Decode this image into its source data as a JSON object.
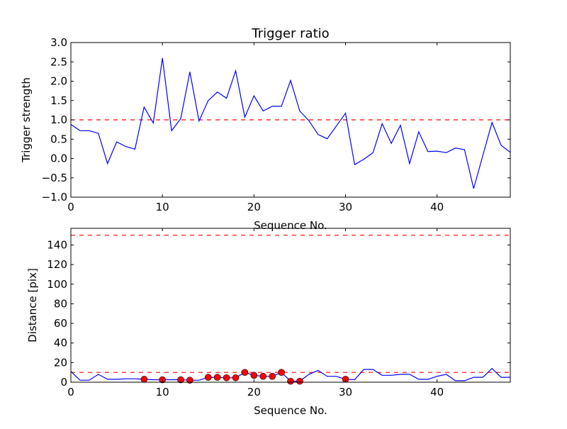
{
  "chart_data": [
    {
      "type": "line",
      "title": "Trigger ratio",
      "xlabel": "Sequence No.",
      "ylabel": "Trigger strength",
      "xlim": [
        0,
        48
      ],
      "ylim": [
        -1.0,
        3.0
      ],
      "xticks": [
        "0",
        "10",
        "20",
        "30",
        "40"
      ],
      "xtick_values": [
        0,
        10,
        20,
        30,
        40
      ],
      "yticks": [
        "−1.0",
        "−0.5",
        "0.0",
        "0.5",
        "1.0",
        "1.5",
        "2.0",
        "2.5",
        "3.0"
      ],
      "ytick_values": [
        -1.0,
        -0.5,
        0.0,
        0.5,
        1.0,
        1.5,
        2.0,
        2.5,
        3.0
      ],
      "threshold_lines": [
        1.0
      ],
      "series": [
        {
          "name": "trigger strength",
          "color": "#0000ff",
          "values": [
            0.88,
            0.72,
            0.72,
            0.65,
            -0.13,
            0.43,
            0.31,
            0.24,
            1.33,
            0.92,
            2.6,
            0.72,
            1.03,
            2.24,
            0.97,
            1.5,
            1.72,
            1.56,
            2.27,
            1.07,
            1.62,
            1.23,
            1.35,
            1.35,
            2.02,
            1.23,
            0.98,
            0.62,
            0.51,
            0.84,
            1.17,
            -0.16,
            -0.02,
            0.15,
            0.9,
            0.39,
            0.86,
            -0.13,
            0.69,
            0.18,
            0.19,
            0.15,
            0.27,
            0.23,
            -0.78,
            0.08,
            0.93,
            0.34,
            0.16
          ]
        }
      ]
    },
    {
      "type": "line",
      "title": "",
      "xlabel": "Sequence No.",
      "ylabel": "Distance [pix]",
      "xlim": [
        0,
        48
      ],
      "ylim": [
        0,
        157
      ],
      "xticks": [
        "0",
        "10",
        "20",
        "30",
        "40"
      ],
      "xtick_values": [
        0,
        10,
        20,
        30,
        40
      ],
      "yticks": [
        "0",
        "20",
        "40",
        "60",
        "80",
        "100",
        "120",
        "140"
      ],
      "ytick_values": [
        0,
        20,
        40,
        60,
        80,
        100,
        120,
        140
      ],
      "threshold_lines": [
        10,
        150
      ],
      "series": [
        {
          "name": "distance",
          "color": "#0000ff",
          "values": [
            11,
            2,
            2,
            8,
            3,
            3,
            3.5,
            3.5,
            3,
            2.5,
            2.5,
            2.5,
            2.5,
            2,
            2,
            5,
            5,
            4.5,
            4.5,
            10,
            7,
            6,
            6,
            10,
            1,
            1,
            8,
            12,
            6,
            6,
            3,
            2.5,
            13,
            13,
            7,
            7,
            8,
            8,
            3,
            3,
            6,
            8,
            1.5,
            1.5,
            5,
            5,
            14,
            5,
            5
          ]
        }
      ],
      "markers": {
        "color": "#ff0000",
        "x": [
          8,
          10,
          12,
          13,
          15,
          16,
          17,
          18,
          19,
          20,
          21,
          22,
          23,
          24,
          25,
          30
        ]
      }
    }
  ]
}
